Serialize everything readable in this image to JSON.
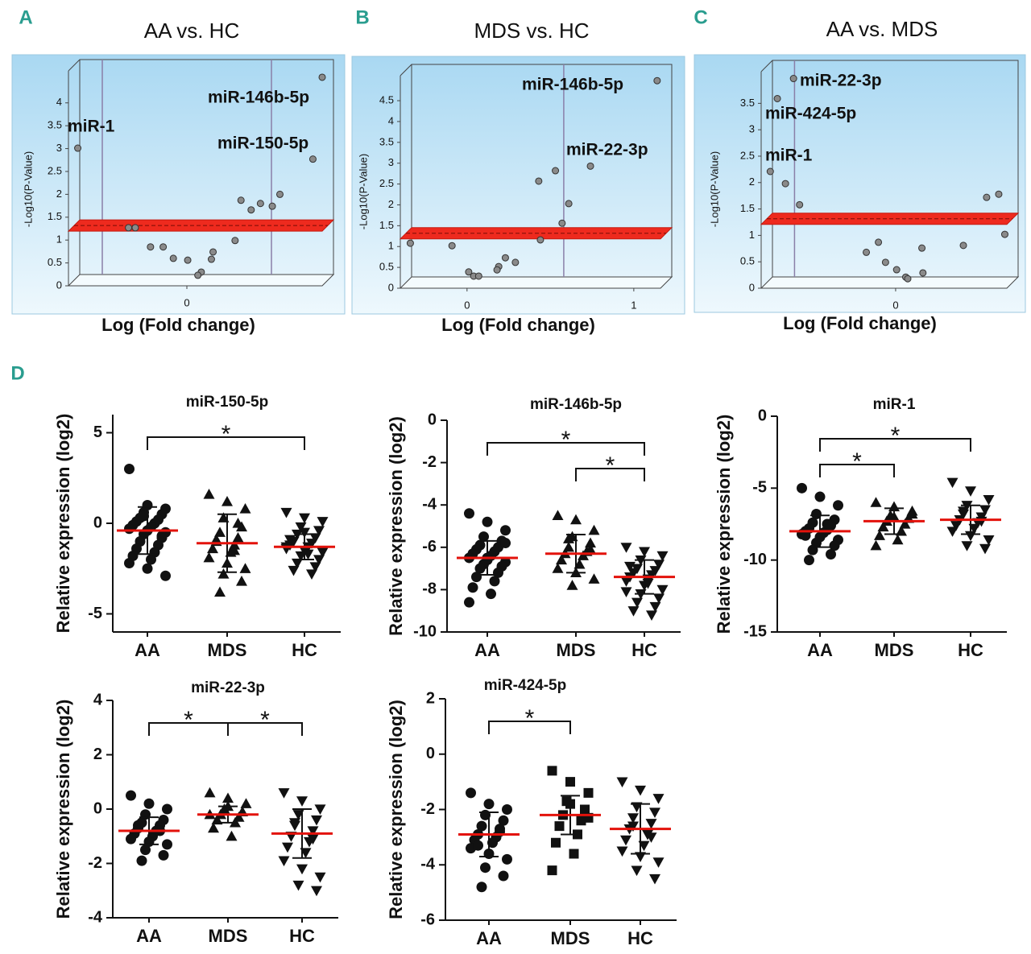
{
  "chart_data": [
    {
      "type": "volcano",
      "panel": "A",
      "title": "AA vs. HC",
      "x_label": "Log (Fold change)",
      "y_label": "-Log10(P-Value)",
      "x": [
        -1.29,
        1.6,
        1.49,
        1.1,
        1.01,
        0.87,
        0.76,
        0.64,
        0.57,
        0.31,
        0.29,
        0.17,
        0.13,
        0.01,
        -0.16,
        -0.28,
        -0.43,
        -0.61,
        -0.69
      ],
      "values": [
        3.01,
        4.56,
        2.77,
        2.0,
        1.74,
        1.8,
        1.66,
        1.87,
        0.99,
        0.74,
        0.58,
        0.3,
        0.23,
        0.56,
        0.6,
        0.85,
        0.85,
        1.27,
        1.27
      ],
      "xlim": [
        -1.4,
        1.6
      ],
      "ylim": [
        0,
        4.7
      ],
      "xticks": [
        0
      ],
      "yticks": [
        0,
        0.5,
        1,
        1.5,
        2,
        2.5,
        3,
        3.5,
        4
      ],
      "threshold": 1.3,
      "vlines": [
        -1,
        1
      ],
      "color": "#8a8a8a",
      "annotations": [
        "miR-1",
        "miR-146b-5p",
        "miR-150-5p"
      ]
    },
    {
      "type": "volcano",
      "panel": "B",
      "title": "MDS vs. HC",
      "x_label": "Log (Fold change)",
      "y_label": "-Log10(P-Value)",
      "x": [
        1.14,
        0.74,
        0.53,
        0.43,
        0.61,
        0.57,
        0.44,
        -0.34,
        -0.09,
        0.29,
        0.23,
        0.19,
        0.18,
        0.01,
        0.04,
        0.07
      ],
      "values": [
        4.98,
        2.93,
        2.82,
        2.57,
        2.03,
        1.56,
        1.16,
        1.08,
        1.02,
        0.62,
        0.73,
        0.52,
        0.44,
        0.39,
        0.29,
        0.29
      ],
      "xlim": [
        -0.4,
        1.16
      ],
      "ylim": [
        0,
        5.1
      ],
      "xticks": [
        0,
        1
      ],
      "yticks": [
        0,
        0.5,
        1,
        1.5,
        2,
        2.5,
        3,
        3.5,
        4,
        4.5
      ],
      "threshold": 1.3,
      "vlines": [
        0.58
      ],
      "color": "#8a8a8a",
      "annotations": [
        "miR-146b-5p",
        "miR-22-3p"
      ]
    },
    {
      "type": "volcano",
      "panel": "C",
      "title": "AA vs. MDS",
      "x_label": "Log (Fold change)",
      "y_label": "-Log10(P-Value)",
      "x": [
        -1.01,
        -1.17,
        -1.24,
        -1.09,
        -0.95,
        1.02,
        0.9,
        1.08,
        0.67,
        0.26,
        -0.17,
        -0.29,
        -0.1,
        0.01,
        0.1,
        0.12,
        0.27
      ],
      "values": [
        3.97,
        3.59,
        2.21,
        1.98,
        1.58,
        1.78,
        1.72,
        1.02,
        0.81,
        0.76,
        0.87,
        0.68,
        0.49,
        0.35,
        0.21,
        0.18,
        0.29
      ],
      "xlim": [
        -1.33,
        1.1
      ],
      "ylim": [
        0,
        4.1
      ],
      "xticks": [
        0
      ],
      "yticks": [
        0,
        0.5,
        1,
        1.5,
        2,
        2.5,
        3,
        3.5
      ],
      "threshold": 1.3,
      "vlines": [
        -1
      ],
      "color": "#8a8a8a",
      "annotations": [
        "miR-22-3p",
        "miR-424-5p",
        "miR-1"
      ]
    },
    {
      "type": "dot",
      "panel": "D",
      "title": "miR-150-5p",
      "y_label": "Relative expression (log2)",
      "ylim": [
        -6,
        6
      ],
      "yticks": [
        -5,
        0,
        5
      ],
      "groups": [
        {
          "name": "AA",
          "marker": "circle",
          "mean": -0.4,
          "sd": 1.3,
          "values": [
            3.0,
            1.0,
            0.8,
            0.6,
            0.5,
            0.3,
            0.2,
            0.1,
            0.0,
            -0.1,
            -0.2,
            -0.3,
            -0.4,
            -0.5,
            -0.6,
            -0.8,
            -1.0,
            -1.2,
            -1.4,
            -1.6,
            -1.8,
            -2.0,
            -2.2,
            -2.5,
            -2.9,
            0.4,
            -0.7
          ]
        },
        {
          "name": "MDS",
          "marker": "triangle",
          "mean": -1.1,
          "sd": 1.6,
          "values": [
            1.6,
            1.2,
            0.8,
            0.3,
            -0.2,
            -0.5,
            -0.8,
            -1.0,
            -1.2,
            -1.4,
            -1.6,
            -1.9,
            -2.2,
            -2.5,
            -2.8,
            -3.2,
            -3.8,
            0.0,
            -0.9,
            -1.5
          ]
        },
        {
          "name": "HC",
          "marker": "triangle-down",
          "mean": -1.3,
          "sd": 0.7,
          "values": [
            0.6,
            0.3,
            0.1,
            -0.2,
            -0.4,
            -0.6,
            -0.8,
            -1.0,
            -1.1,
            -1.2,
            -1.3,
            -1.4,
            -1.5,
            -1.6,
            -1.8,
            -2.0,
            -2.2,
            -2.4,
            -2.6,
            -2.8,
            -0.9,
            -1.7,
            -1.3,
            -0.5
          ]
        }
      ],
      "comparisons": [
        {
          "groups": [
            "AA",
            "HC"
          ],
          "label": "*"
        }
      ]
    },
    {
      "type": "dot",
      "title": "miR-146b-5p",
      "y_label": "Relative expression (log2)",
      "ylim": [
        -10,
        0
      ],
      "yticks": [
        -10,
        -8,
        -6,
        -4,
        -2,
        0
      ],
      "groups": [
        {
          "name": "AA",
          "marker": "circle",
          "mean": -6.5,
          "sd": 0.8,
          "values": [
            -4.4,
            -4.8,
            -5.2,
            -5.5,
            -5.7,
            -5.9,
            -6.0,
            -6.1,
            -6.2,
            -6.3,
            -6.4,
            -6.5,
            -6.6,
            -6.7,
            -6.8,
            -6.9,
            -7.0,
            -7.2,
            -7.4,
            -7.6,
            -7.9,
            -8.2,
            -8.6,
            -6.5,
            -5.8
          ]
        },
        {
          "name": "MDS",
          "marker": "triangle",
          "mean": -6.3,
          "sd": 0.9,
          "values": [
            -4.5,
            -4.7,
            -5.2,
            -5.5,
            -5.8,
            -6.0,
            -6.2,
            -6.3,
            -6.4,
            -6.6,
            -6.8,
            -7.0,
            -7.2,
            -7.5,
            -7.8,
            -6.1,
            -5.6
          ]
        },
        {
          "name": "HC",
          "marker": "triangle-down",
          "mean": -7.4,
          "sd": 0.8,
          "values": [
            -6.0,
            -6.2,
            -6.4,
            -6.6,
            -6.8,
            -7.0,
            -7.1,
            -7.2,
            -7.3,
            -7.4,
            -7.5,
            -7.6,
            -7.8,
            -8.0,
            -8.2,
            -8.4,
            -8.6,
            -8.8,
            -9.0,
            -9.2,
            -6.9,
            -7.7,
            -8.1
          ]
        }
      ],
      "comparisons": [
        {
          "groups": [
            "AA",
            "HC"
          ],
          "label": "*"
        },
        {
          "groups": [
            "MDS",
            "HC"
          ],
          "label": "*"
        }
      ]
    },
    {
      "type": "dot",
      "title": "miR-1",
      "y_label": "Relative expression (log2)",
      "ylim": [
        -15,
        0
      ],
      "yticks": [
        -15,
        -10,
        -5,
        0
      ],
      "groups": [
        {
          "name": "AA",
          "marker": "circle",
          "mean": -8.0,
          "sd": 1.1,
          "values": [
            -5.0,
            -5.6,
            -6.2,
            -6.8,
            -7.2,
            -7.4,
            -7.6,
            -7.8,
            -7.9,
            -8.0,
            -8.1,
            -8.2,
            -8.4,
            -8.6,
            -8.8,
            -9.0,
            -9.3,
            -9.6,
            -10.0,
            -7.5,
            -8.3
          ]
        },
        {
          "name": "MDS",
          "marker": "triangle",
          "mean": -7.3,
          "sd": 0.9,
          "values": [
            -6.0,
            -6.3,
            -6.6,
            -6.9,
            -7.1,
            -7.3,
            -7.5,
            -7.7,
            -8.0,
            -8.3,
            -8.6,
            -9.0,
            -7.0,
            -6.8
          ]
        },
        {
          "name": "HC",
          "marker": "triangle-down",
          "mean": -7.2,
          "sd": 1.0,
          "values": [
            -4.6,
            -5.2,
            -5.8,
            -6.2,
            -6.5,
            -6.8,
            -7.0,
            -7.2,
            -7.4,
            -7.6,
            -7.8,
            -8.0,
            -8.3,
            -8.6,
            -9.0,
            -9.2,
            -6.6,
            -7.3
          ]
        }
      ],
      "comparisons": [
        {
          "groups": [
            "AA",
            "HC"
          ],
          "label": "*"
        },
        {
          "groups": [
            "AA",
            "MDS"
          ],
          "label": "*"
        }
      ]
    },
    {
      "type": "dot",
      "title": "miR-22-3p",
      "y_label": "Relative expression (log2)",
      "ylim": [
        -4,
        4
      ],
      "yticks": [
        -4,
        -2,
        0,
        2,
        4
      ],
      "groups": [
        {
          "name": "AA",
          "marker": "circle",
          "mean": -0.8,
          "sd": 0.5,
          "values": [
            0.5,
            0.2,
            0.0,
            -0.2,
            -0.4,
            -0.5,
            -0.6,
            -0.7,
            -0.8,
            -0.9,
            -1.0,
            -1.1,
            -1.2,
            -1.3,
            -1.5,
            -1.7,
            -1.9,
            -0.8,
            -0.6
          ]
        },
        {
          "name": "MDS",
          "marker": "triangle",
          "mean": -0.2,
          "sd": 0.3,
          "values": [
            0.6,
            0.4,
            0.2,
            0.0,
            -0.1,
            -0.2,
            -0.3,
            -0.4,
            -0.5,
            -0.7,
            -1.0,
            -0.2,
            0.1
          ]
        },
        {
          "name": "HC",
          "marker": "triangle-down",
          "mean": -0.9,
          "sd": 0.9,
          "values": [
            0.6,
            0.3,
            0.0,
            -0.2,
            -0.4,
            -0.6,
            -0.8,
            -1.0,
            -1.2,
            -1.4,
            -1.6,
            -1.9,
            -2.2,
            -2.5,
            -2.8,
            -3.0,
            -0.5,
            -1.1
          ]
        }
      ],
      "comparisons": [
        {
          "groups": [
            "AA",
            "MDS"
          ],
          "label": "*"
        },
        {
          "groups": [
            "MDS",
            "HC"
          ],
          "label": "*"
        }
      ]
    },
    {
      "type": "dot",
      "title": "miR-424-5p",
      "y_label": "Relative expression (log2)",
      "ylim": [
        -6,
        2
      ],
      "yticks": [
        -6,
        -4,
        -2,
        0,
        2
      ],
      "groups": [
        {
          "name": "AA",
          "marker": "circle",
          "mean": -2.9,
          "sd": 0.8,
          "values": [
            -1.4,
            -1.8,
            -2.0,
            -2.2,
            -2.4,
            -2.6,
            -2.8,
            -2.9,
            -3.0,
            -3.1,
            -3.2,
            -3.4,
            -3.6,
            -3.8,
            -4.1,
            -4.4,
            -4.8,
            -2.7,
            -3.3
          ]
        },
        {
          "name": "MDS",
          "marker": "square",
          "mean": -2.2,
          "sd": 0.7,
          "values": [
            -0.6,
            -1.0,
            -1.4,
            -1.7,
            -2.0,
            -2.2,
            -2.4,
            -2.6,
            -2.9,
            -3.2,
            -3.6,
            -4.2,
            -1.8,
            -2.3
          ]
        },
        {
          "name": "HC",
          "marker": "triangle-down",
          "mean": -2.7,
          "sd": 0.9,
          "values": [
            -1.0,
            -1.3,
            -1.6,
            -1.9,
            -2.1,
            -2.3,
            -2.5,
            -2.7,
            -2.9,
            -3.1,
            -3.3,
            -3.5,
            -3.7,
            -3.9,
            -4.2,
            -4.5,
            -2.6,
            -3.0
          ]
        }
      ],
      "comparisons": [
        {
          "groups": [
            "AA",
            "MDS"
          ],
          "label": "*"
        }
      ]
    }
  ]
}
